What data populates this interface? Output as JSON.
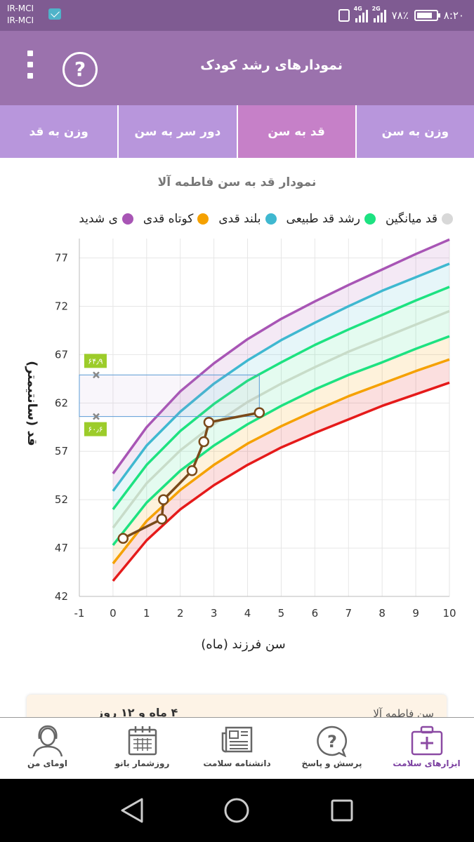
{
  "status": {
    "carrier1": "IR-MCI",
    "carrier2": "IR-MCI",
    "net1": "4G",
    "net2": "2G",
    "battery": "۷۸٪",
    "time": "۸:۲۰"
  },
  "appbar": {
    "title": "نمودارهای رشد کودک"
  },
  "tabs": [
    "وزن به سن",
    "قد به سن",
    "دور سر به سن",
    "وزن به قد"
  ],
  "active_tab": "قد به سن",
  "chart": {
    "title": "نمودار قد به سن فاطمه آلا",
    "legend": [
      {
        "label": "ی شدید",
        "color": "#a855b5"
      },
      {
        "label": "کوتاه قدی",
        "color": "#f5a100"
      },
      {
        "label": "بلند قدی",
        "color": "#3fb8d0"
      },
      {
        "label": "رشد قد طبیعی",
        "color": "#1de281"
      },
      {
        "label": "قد میانگین",
        "color": "#d8d8d8"
      }
    ],
    "selection_high_label": "۶۴٫۹",
    "selection_low_label": "۶۰٫۶"
  },
  "chart_data": {
    "type": "line",
    "xlabel": "سن فرزند (ماه)",
    "ylabel": "قد (سانتیمتر)",
    "xlim": [
      -1,
      10
    ],
    "ylim": [
      42,
      79
    ],
    "xticks": [
      -1,
      0,
      1,
      2,
      3,
      4,
      5,
      6,
      7,
      8,
      9,
      10
    ],
    "yticks": [
      42,
      47,
      52,
      57,
      62,
      67,
      72,
      77
    ],
    "grid": true,
    "x": [
      0,
      1,
      2,
      3,
      4,
      5,
      6,
      7,
      8,
      9,
      10
    ],
    "series": [
      {
        "color": "#a855b5",
        "values": [
          54.7,
          59.5,
          63.2,
          66.1,
          68.6,
          70.7,
          72.5,
          74.2,
          75.8,
          77.4,
          78.9
        ]
      },
      {
        "color": "#3fb8d0",
        "values": [
          52.9,
          57.6,
          61.1,
          64.0,
          66.4,
          68.5,
          70.3,
          72.0,
          73.6,
          75.0,
          76.4
        ]
      },
      {
        "color": "#1de281",
        "values": [
          51.0,
          55.6,
          59.1,
          61.9,
          64.3,
          66.2,
          68.0,
          69.6,
          71.1,
          72.6,
          74.0
        ]
      },
      {
        "color": "#c8dcc9",
        "values": [
          49.1,
          53.7,
          57.1,
          59.8,
          62.1,
          64.0,
          65.7,
          67.3,
          68.7,
          70.1,
          71.5
        ]
      },
      {
        "color": "#1de281",
        "values": [
          47.3,
          51.7,
          55.0,
          57.6,
          59.8,
          61.7,
          63.4,
          64.9,
          66.2,
          67.6,
          68.9
        ]
      },
      {
        "color": "#f5a100",
        "values": [
          45.4,
          49.8,
          53.0,
          55.6,
          57.8,
          59.6,
          61.2,
          62.7,
          64.0,
          65.3,
          66.5
        ]
      },
      {
        "color": "#e51a1a",
        "values": [
          43.6,
          47.8,
          51.0,
          53.5,
          55.6,
          57.4,
          58.9,
          60.3,
          61.7,
          62.9,
          64.1
        ]
      }
    ],
    "child": {
      "color": "#7a4a1a",
      "points": [
        [
          0.3,
          48.0
        ],
        [
          1.45,
          50.0
        ],
        [
          1.5,
          52.0
        ],
        [
          2.35,
          55.0
        ],
        [
          2.7,
          58.0
        ],
        [
          2.85,
          60.0
        ],
        [
          4.35,
          61.0
        ]
      ]
    },
    "selection": {
      "x": [
        -1,
        4.35
      ],
      "y": [
        60.6,
        64.9
      ]
    }
  },
  "info": {
    "label": "سن فاطمه آلا",
    "value": "۴ ماه و ۱۲ روز"
  },
  "nav": [
    {
      "label": "ابزارهای سلامت",
      "icon": "medical-kit-icon",
      "active": true
    },
    {
      "label": "پرسش و پاسخ",
      "icon": "question-bubble-icon",
      "active": false
    },
    {
      "label": "دانشنامه سلامت",
      "icon": "newspaper-icon",
      "active": false
    },
    {
      "label": "روزشمار بانو",
      "icon": "calendar-icon",
      "active": false
    },
    {
      "label": "اومای من",
      "icon": "woman-avatar-icon",
      "active": false
    }
  ]
}
